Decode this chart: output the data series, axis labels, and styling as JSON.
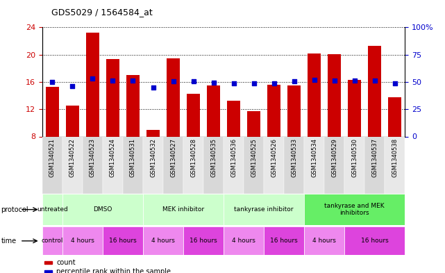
{
  "title": "GDS5029 / 1564584_at",
  "samples": [
    "GSM1340521",
    "GSM1340522",
    "GSM1340523",
    "GSM1340524",
    "GSM1340531",
    "GSM1340532",
    "GSM1340527",
    "GSM1340528",
    "GSM1340535",
    "GSM1340536",
    "GSM1340525",
    "GSM1340526",
    "GSM1340533",
    "GSM1340534",
    "GSM1340529",
    "GSM1340530",
    "GSM1340537",
    "GSM1340538"
  ],
  "bar_values": [
    15.3,
    12.5,
    23.2,
    19.3,
    17.0,
    9.0,
    19.5,
    14.3,
    15.5,
    13.2,
    11.7,
    15.6,
    15.5,
    20.2,
    20.1,
    16.3,
    21.3,
    13.8
  ],
  "blue_dot_values": [
    16.0,
    15.4,
    16.5,
    16.2,
    16.2,
    15.2,
    16.1,
    16.1,
    15.9,
    15.8,
    15.8,
    15.8,
    16.1,
    16.3,
    16.2,
    16.2,
    16.2,
    15.8
  ],
  "bar_color": "#cc0000",
  "dot_color": "#0000cc",
  "ylim_left": [
    8,
    24
  ],
  "yticks_left": [
    8,
    12,
    16,
    20,
    24
  ],
  "ylim_right": [
    0,
    100
  ],
  "yticks_right": [
    0,
    25,
    50,
    75,
    100
  ],
  "ylabel_left_color": "#cc0000",
  "ylabel_right_color": "#0000cc",
  "grid_color": "black",
  "bg_color": "#ffffff",
  "plot_bg_color": "#ffffff",
  "protocols": [
    {
      "label": "untreated",
      "start": 0,
      "end": 1,
      "color": "#ccffcc"
    },
    {
      "label": "DMSO",
      "start": 1,
      "end": 5,
      "color": "#ccffcc"
    },
    {
      "label": "MEK inhibitor",
      "start": 5,
      "end": 9,
      "color": "#ccffcc"
    },
    {
      "label": "tankyrase inhibitor",
      "start": 9,
      "end": 13,
      "color": "#ccffcc"
    },
    {
      "label": "tankyrase and MEK\ninhibitors",
      "start": 13,
      "end": 18,
      "color": "#66ee66"
    }
  ],
  "times": [
    {
      "label": "control",
      "start": 0,
      "end": 1,
      "color": "#ee88ee"
    },
    {
      "label": "4 hours",
      "start": 1,
      "end": 3,
      "color": "#ee88ee"
    },
    {
      "label": "16 hours",
      "start": 3,
      "end": 5,
      "color": "#dd44dd"
    },
    {
      "label": "4 hours",
      "start": 5,
      "end": 7,
      "color": "#ee88ee"
    },
    {
      "label": "16 hours",
      "start": 7,
      "end": 9,
      "color": "#dd44dd"
    },
    {
      "label": "4 hours",
      "start": 9,
      "end": 11,
      "color": "#ee88ee"
    },
    {
      "label": "16 hours",
      "start": 11,
      "end": 13,
      "color": "#dd44dd"
    },
    {
      "label": "4 hours",
      "start": 13,
      "end": 15,
      "color": "#ee88ee"
    },
    {
      "label": "16 hours",
      "start": 15,
      "end": 18,
      "color": "#dd44dd"
    }
  ],
  "legend_items": [
    {
      "label": "count",
      "color": "#cc0000"
    },
    {
      "label": "percentile rank within the sample",
      "color": "#0000cc"
    }
  ],
  "sample_bg_colors": [
    "#d8d8d8",
    "#e8e8e8"
  ]
}
